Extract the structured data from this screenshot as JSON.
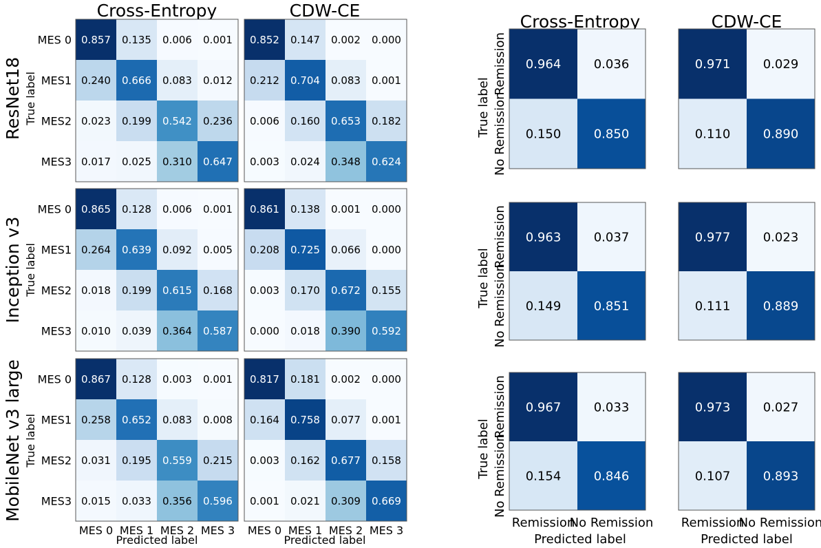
{
  "colormap": {
    "low": "#f7fbff",
    "mid": "#6baed6",
    "high": "#08306b",
    "light_text": "#ffffff",
    "dark_text": "#000000"
  },
  "row_groups": [
    "ResNet18",
    "Inception v3",
    "MobileNet v3 large"
  ],
  "column_titles": {
    "left": [
      "Cross-Entropy",
      "CDW-CE"
    ],
    "right": [
      "Cross-Entropy",
      "CDW-CE"
    ]
  },
  "axes": {
    "ylabel": "True label",
    "xlabel": "Predicted label",
    "mes_ytick_labels": [
      "MES 0",
      "MES1",
      "MES2",
      "MES3"
    ],
    "mes_xtick_labels": [
      "MES 0",
      "MES 1",
      "MES 2",
      "MES 3"
    ],
    "binary_ytick_labels": [
      "Remission",
      "No Remission"
    ],
    "binary_xtick_labels": [
      "Remission",
      "No Remission"
    ]
  },
  "chart_data": [
    {
      "type": "heatmap",
      "title": "Cross-Entropy",
      "model": "ResNet18",
      "rows": [
        "MES 0",
        "MES1",
        "MES2",
        "MES3"
      ],
      "cols": [
        "MES 0",
        "MES 1",
        "MES 2",
        "MES 3"
      ],
      "values": [
        [
          0.857,
          0.135,
          0.006,
          0.001
        ],
        [
          0.24,
          0.666,
          0.083,
          0.012
        ],
        [
          0.023,
          0.199,
          0.542,
          0.236
        ],
        [
          0.017,
          0.025,
          0.31,
          0.647
        ]
      ]
    },
    {
      "type": "heatmap",
      "title": "CDW-CE",
      "model": "ResNet18",
      "rows": [
        "MES 0",
        "MES1",
        "MES2",
        "MES3"
      ],
      "cols": [
        "MES 0",
        "MES 1",
        "MES 2",
        "MES 3"
      ],
      "values": [
        [
          0.852,
          0.147,
          0.002,
          0.0
        ],
        [
          0.212,
          0.704,
          0.083,
          0.001
        ],
        [
          0.006,
          0.16,
          0.653,
          0.182
        ],
        [
          0.003,
          0.024,
          0.348,
          0.624
        ]
      ]
    },
    {
      "type": "heatmap",
      "title": "Cross-Entropy",
      "model": "Inception v3",
      "rows": [
        "MES 0",
        "MES1",
        "MES2",
        "MES3"
      ],
      "cols": [
        "MES 0",
        "MES 1",
        "MES 2",
        "MES 3"
      ],
      "values": [
        [
          0.865,
          0.128,
          0.006,
          0.001
        ],
        [
          0.264,
          0.639,
          0.092,
          0.005
        ],
        [
          0.018,
          0.199,
          0.615,
          0.168
        ],
        [
          0.01,
          0.039,
          0.364,
          0.587
        ]
      ]
    },
    {
      "type": "heatmap",
      "title": "CDW-CE",
      "model": "Inception v3",
      "rows": [
        "MES 0",
        "MES1",
        "MES2",
        "MES3"
      ],
      "cols": [
        "MES 0",
        "MES 1",
        "MES 2",
        "MES 3"
      ],
      "values": [
        [
          0.861,
          0.138,
          0.001,
          0.0
        ],
        [
          0.208,
          0.725,
          0.066,
          0.0
        ],
        [
          0.003,
          0.17,
          0.672,
          0.155
        ],
        [
          0.0,
          0.018,
          0.39,
          0.592
        ]
      ]
    },
    {
      "type": "heatmap",
      "title": "Cross-Entropy",
      "model": "MobileNet v3 large",
      "rows": [
        "MES 0",
        "MES1",
        "MES2",
        "MES3"
      ],
      "cols": [
        "MES 0",
        "MES 1",
        "MES 2",
        "MES 3"
      ],
      "values": [
        [
          0.867,
          0.128,
          0.003,
          0.001
        ],
        [
          0.258,
          0.652,
          0.083,
          0.008
        ],
        [
          0.031,
          0.195,
          0.559,
          0.215
        ],
        [
          0.015,
          0.033,
          0.356,
          0.596
        ]
      ]
    },
    {
      "type": "heatmap",
      "title": "CDW-CE",
      "model": "MobileNet v3 large",
      "rows": [
        "MES 0",
        "MES1",
        "MES2",
        "MES3"
      ],
      "cols": [
        "MES 0",
        "MES 1",
        "MES 2",
        "MES 3"
      ],
      "values": [
        [
          0.817,
          0.181,
          0.002,
          0.0
        ],
        [
          0.164,
          0.758,
          0.077,
          0.001
        ],
        [
          0.003,
          0.162,
          0.677,
          0.158
        ],
        [
          0.001,
          0.021,
          0.309,
          0.669
        ]
      ]
    },
    {
      "type": "heatmap",
      "title": "Cross-Entropy",
      "model": "ResNet18",
      "rows": [
        "Remission",
        "No Remission"
      ],
      "cols": [
        "Remission",
        "No Remission"
      ],
      "values": [
        [
          0.964,
          0.036
        ],
        [
          0.15,
          0.85
        ]
      ]
    },
    {
      "type": "heatmap",
      "title": "CDW-CE",
      "model": "ResNet18",
      "rows": [
        "Remission",
        "No Remission"
      ],
      "cols": [
        "Remission",
        "No Remission"
      ],
      "values": [
        [
          0.971,
          0.029
        ],
        [
          0.11,
          0.89
        ]
      ]
    },
    {
      "type": "heatmap",
      "title": "Cross-Entropy",
      "model": "Inception v3",
      "rows": [
        "Remission",
        "No Remission"
      ],
      "cols": [
        "Remission",
        "No Remission"
      ],
      "values": [
        [
          0.963,
          0.037
        ],
        [
          0.149,
          0.851
        ]
      ]
    },
    {
      "type": "heatmap",
      "title": "CDW-CE",
      "model": "Inception v3",
      "rows": [
        "Remission",
        "No Remission"
      ],
      "cols": [
        "Remission",
        "No Remission"
      ],
      "values": [
        [
          0.977,
          0.023
        ],
        [
          0.111,
          0.889
        ]
      ]
    },
    {
      "type": "heatmap",
      "title": "Cross-Entropy",
      "model": "MobileNet v3 large",
      "rows": [
        "Remission",
        "No Remission"
      ],
      "cols": [
        "Remission",
        "No Remission"
      ],
      "values": [
        [
          0.967,
          0.033
        ],
        [
          0.154,
          0.846
        ]
      ]
    },
    {
      "type": "heatmap",
      "title": "CDW-CE",
      "model": "MobileNet v3 large",
      "rows": [
        "Remission",
        "No Remission"
      ],
      "cols": [
        "Remission",
        "No Remission"
      ],
      "values": [
        [
          0.973,
          0.027
        ],
        [
          0.107,
          0.893
        ]
      ]
    }
  ]
}
